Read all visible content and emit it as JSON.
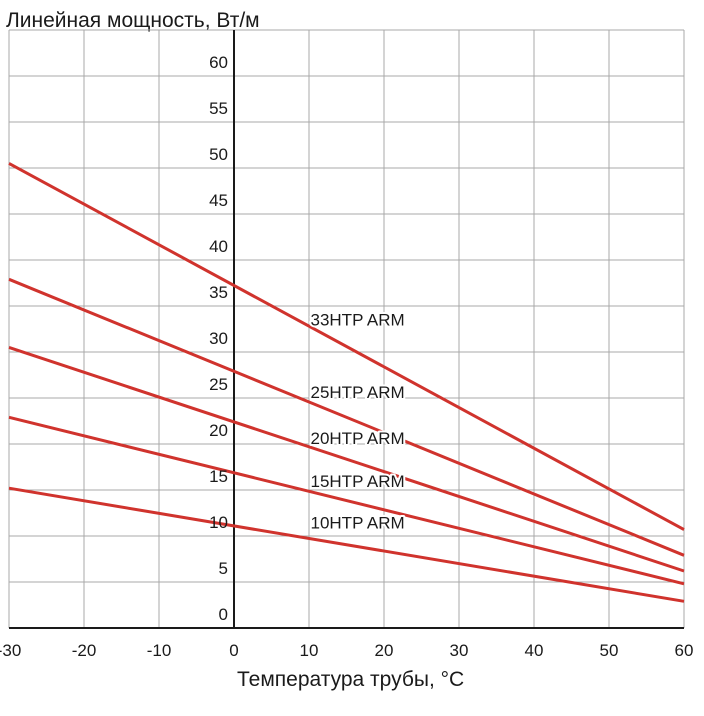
{
  "chart_data": {
    "type": "line",
    "title": "",
    "ylabel": "Линейная мощность, Вт/м",
    "xlabel": "Температура трубы, °С",
    "xlim": [
      -30,
      60
    ],
    "ylim": [
      0,
      65
    ],
    "x_ticks": [
      -30,
      -20,
      -10,
      0,
      10,
      20,
      30,
      40,
      50,
      60
    ],
    "x_tick_labels": [
      "-30",
      "-20",
      "-10",
      "0",
      "10",
      "20",
      "30",
      "40",
      "50",
      "60"
    ],
    "y_ticks": [
      0,
      5,
      10,
      15,
      20,
      25,
      30,
      35,
      40,
      45,
      50,
      55,
      60
    ],
    "y_tick_labels": [
      "0",
      "5",
      "10",
      "15",
      "20",
      "25",
      "30",
      "35",
      "40",
      "45",
      "50",
      "55",
      "60"
    ],
    "grid": true,
    "line_color": "#d0332d",
    "grid_color": "#a9a9a9",
    "series": [
      {
        "name": "33HTP ARM",
        "x": [
          -30,
          60
        ],
        "y": [
          50.5,
          10.7
        ]
      },
      {
        "name": "25HTP ARM",
        "x": [
          -30,
          60
        ],
        "y": [
          37.9,
          7.9
        ]
      },
      {
        "name": "20HTP ARM",
        "x": [
          -30,
          60
        ],
        "y": [
          30.5,
          6.2
        ]
      },
      {
        "name": "15HTP ARM",
        "x": [
          -30,
          60
        ],
        "y": [
          22.9,
          4.8
        ]
      },
      {
        "name": "10HTP ARM",
        "x": [
          -30,
          60
        ],
        "y": [
          15.2,
          2.9
        ]
      }
    ],
    "annotations": [
      {
        "text": "33HTP ARM",
        "x": 10.2,
        "y": 32.9
      },
      {
        "text": "25HTP ARM",
        "x": 10.2,
        "y": 25.0
      },
      {
        "text": "20HTP ARM",
        "x": 10.2,
        "y": 20.0
      },
      {
        "text": "15HTP ARM",
        "x": 10.2,
        "y": 15.3
      },
      {
        "text": "10HTP ARM",
        "x": 10.2,
        "y": 10.8
      }
    ]
  }
}
